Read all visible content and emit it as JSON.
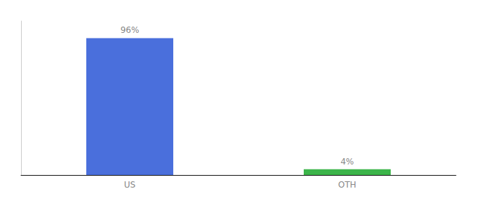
{
  "chart_data": {
    "type": "bar",
    "categories": [
      "US",
      "OTH"
    ],
    "values": [
      96,
      4
    ],
    "value_labels": [
      "96%",
      "4%"
    ],
    "colors": [
      "#4a6fdc",
      "#3cb54a"
    ],
    "ylim": [
      0,
      108
    ],
    "grid": false,
    "data_labels": true,
    "tick_labels": "x"
  }
}
